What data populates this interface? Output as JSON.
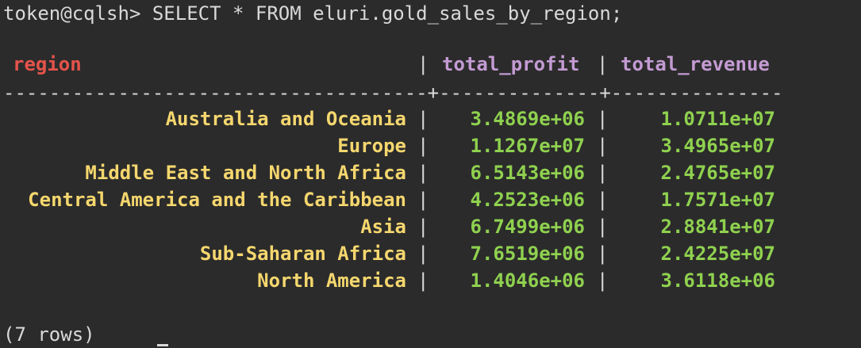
{
  "terminal": {
    "prompt": "token@cqlsh> ",
    "command": "SELECT * FROM eluri.gold_sales_by_region;",
    "footer": "(7 rows)"
  },
  "table": {
    "columns": [
      "region",
      "total_profit",
      "total_revenue"
    ],
    "separator": "-------------------------------------+--------------+---------------",
    "rows": [
      {
        "region": "Australia and Oceania",
        "total_profit": "3.4869e+06",
        "total_revenue": "1.0711e+07"
      },
      {
        "region": "Europe",
        "total_profit": "1.1267e+07",
        "total_revenue": "3.4965e+07"
      },
      {
        "region": "Middle East and North Africa",
        "total_profit": "6.5143e+06",
        "total_revenue": "2.4765e+07"
      },
      {
        "region": "Central America and the Caribbean",
        "total_profit": "4.2523e+06",
        "total_revenue": "1.7571e+07"
      },
      {
        "region": "Asia",
        "total_profit": "6.7499e+06",
        "total_revenue": "2.8841e+07"
      },
      {
        "region": "Sub-Saharan Africa",
        "total_profit": "7.6519e+06",
        "total_revenue": "2.4225e+07"
      },
      {
        "region": "North America",
        "total_profit": "1.4046e+06",
        "total_revenue": "3.6118e+06"
      }
    ]
  },
  "colors": {
    "background": "#2b2b2b",
    "text": "#d9d9d9",
    "region_header": "#e5534b",
    "numeric_header": "#c39bd3",
    "region_values": "#f5d76e",
    "numeric_values": "#8fd14f"
  }
}
